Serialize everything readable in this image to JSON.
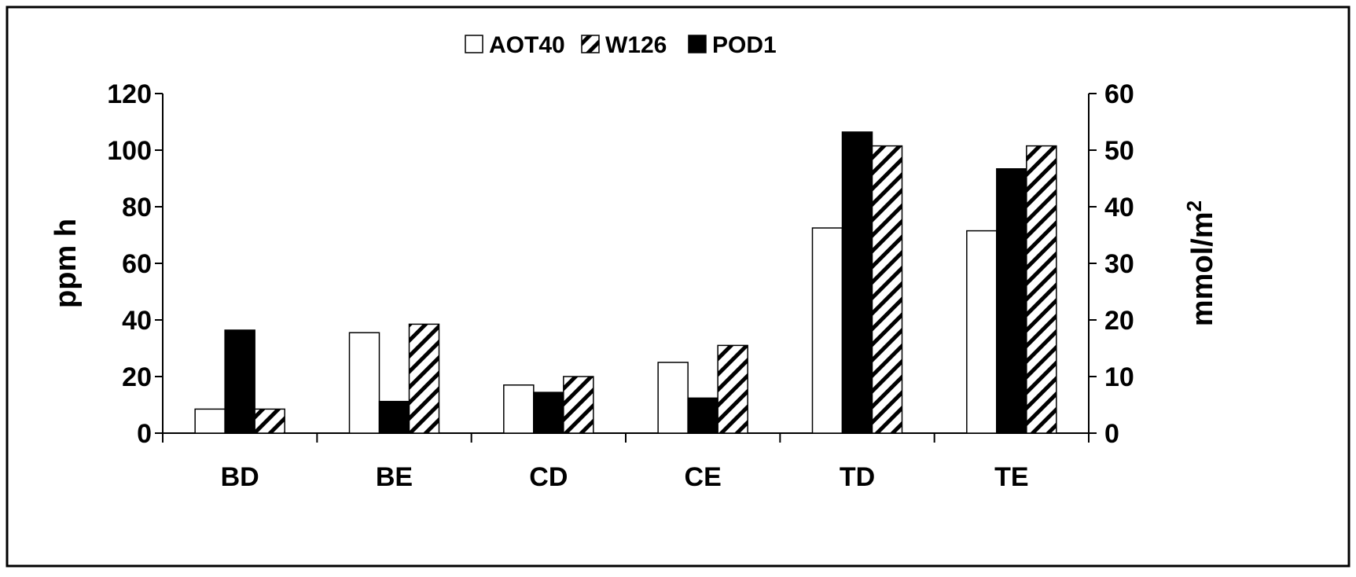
{
  "chart_data": {
    "type": "bar",
    "categories": [
      "BD",
      "BE",
      "CD",
      "CE",
      "TD",
      "TE"
    ],
    "series": [
      {
        "name": "AOT40",
        "axis": "left",
        "values": [
          8.5,
          35.5,
          17,
          25,
          72.5,
          71.5
        ]
      },
      {
        "name": "POD1",
        "axis": "right",
        "values": [
          18.2,
          5.6,
          7.2,
          6.2,
          53.2,
          46.7
        ]
      },
      {
        "name": "W126",
        "axis": "left",
        "values": [
          8.5,
          38.5,
          20,
          31,
          101.5,
          101.5
        ]
      }
    ],
    "legend_order": [
      "AOT40",
      "W126",
      "POD1"
    ],
    "legend_position": "top-center",
    "styles": {
      "AOT40": {
        "fill": "#ffffff",
        "pattern": "none"
      },
      "W126": {
        "fill": "#ffffff",
        "pattern": "diagonal-hatch"
      },
      "POD1": {
        "fill": "#000000",
        "pattern": "none"
      }
    },
    "ylabel": "ppm h",
    "ylabel_right": "mmol/m",
    "ylabel_right_sup": "2",
    "ylim": [
      0,
      120
    ],
    "ylim_right": [
      0,
      60
    ],
    "yticks": [
      0,
      20,
      40,
      60,
      80,
      100,
      120
    ],
    "yticks_right": [
      0,
      10,
      20,
      30,
      40,
      50,
      60
    ],
    "grid": false
  }
}
